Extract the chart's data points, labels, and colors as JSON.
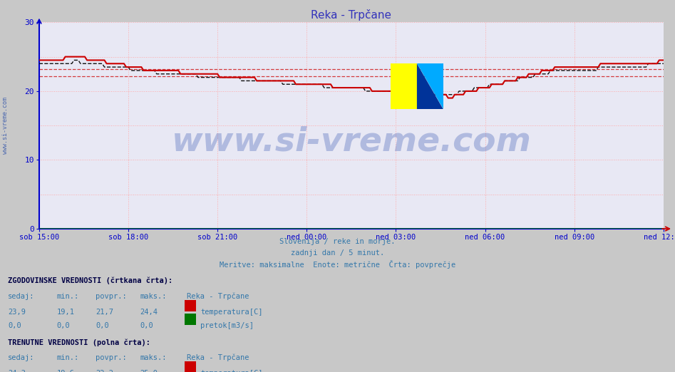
{
  "title": "Reka - Trpčane",
  "title_color": "#3333bb",
  "title_fontsize": 11,
  "bg_color": "#c8c8c8",
  "plot_bg_color": "#e8e8f4",
  "xlabel_labels": [
    "sob 15:00",
    "sob 18:00",
    "sob 21:00",
    "ned 00:00",
    "ned 03:00",
    "ned 06:00",
    "ned 09:00",
    "ned 12:00"
  ],
  "ylim": [
    0,
    30
  ],
  "yticks": [
    0,
    10,
    20,
    30
  ],
  "grid_color": "#ffaaaa",
  "axis_color": "#0000cc",
  "watermark_side": "www.si-vreme.com",
  "center_text": "www.si-vreme.com",
  "subtitle1": "Slovenija / reke in morje.",
  "subtitle2": "zadnji dan / 5 minut.",
  "subtitle3": "Meritve: maksimalne  Enote: metrične  Črta: povprečje",
  "subtitle_color": "#3377aa",
  "n_points": 288,
  "line_color_temp": "#cc0000",
  "line_color_pretok": "#007700",
  "hist_hline1": 22.2,
  "hist_hline2": 23.2,
  "logo_yellow": "#ffff00",
  "logo_cyan": "#00aaff",
  "logo_darkblue": "#003399"
}
